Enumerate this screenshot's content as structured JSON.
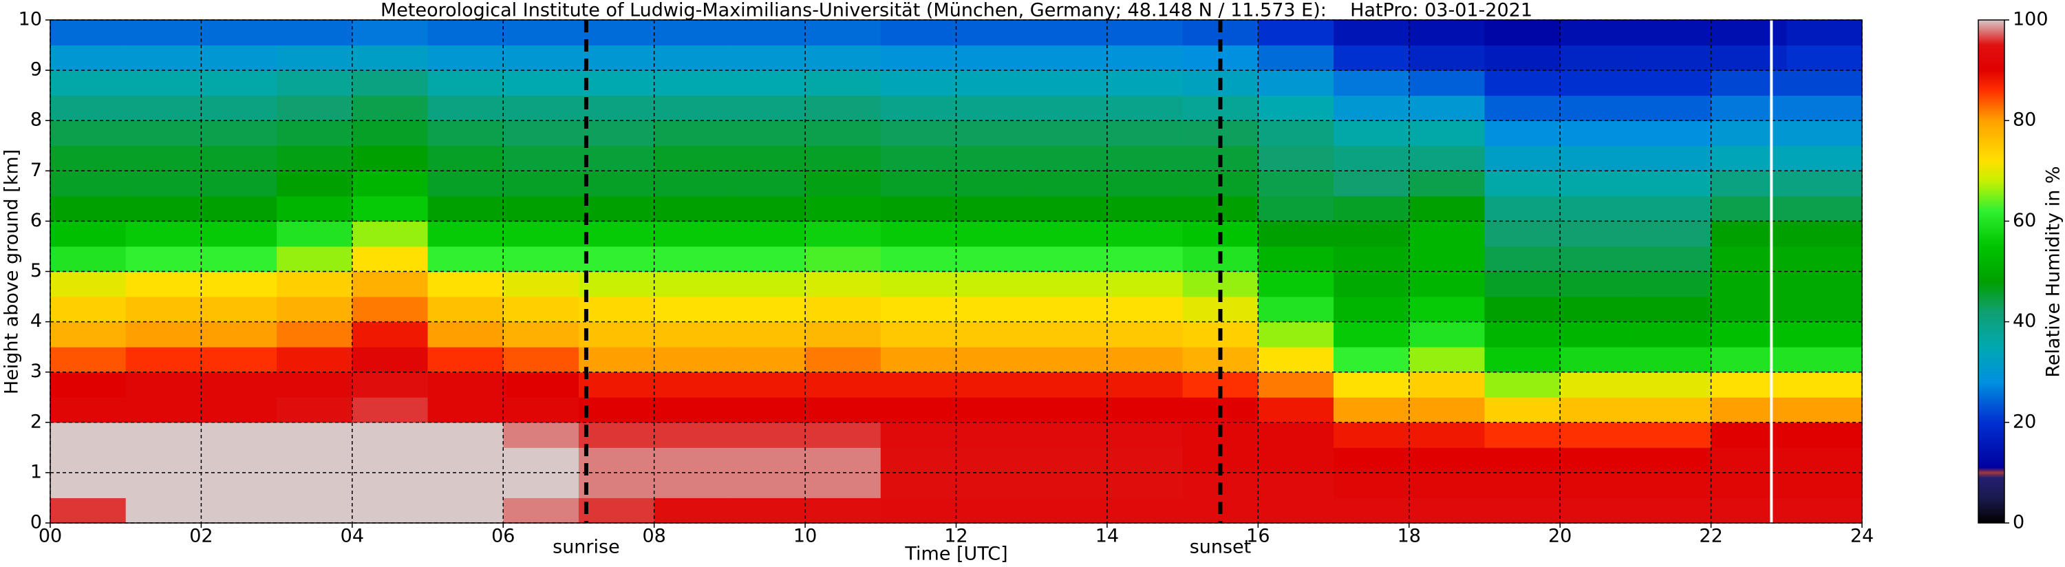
{
  "chart_data": {
    "type": "heatmap",
    "title": "Meteorological Institute of Ludwig-Maximilians-Universität (München, Germany; 48.148 N / 11.573 E):    HatPro: 03-01-2021",
    "xlabel": "Time [UTC]",
    "ylabel": "Height above ground [km]",
    "colorbar_label": "Relative Humidity in %",
    "x": [
      0,
      1,
      2,
      3,
      4,
      5,
      6,
      7,
      8,
      9,
      10,
      11,
      12,
      13,
      14,
      15,
      16,
      17,
      18,
      19,
      20,
      21,
      22,
      23,
      24
    ],
    "y": [
      0,
      0.5,
      1,
      1.5,
      2,
      2.5,
      3,
      3.5,
      4,
      4.5,
      5,
      5.5,
      6,
      6.5,
      7,
      7.5,
      8,
      8.5,
      9,
      9.5,
      10
    ],
    "values": [
      [
        96,
        100,
        100,
        100,
        92,
        90,
        84,
        78,
        74,
        70,
        60,
        54,
        48,
        46,
        46,
        44,
        40,
        36,
        30,
        25
      ],
      [
        100,
        100,
        100,
        100,
        92,
        92,
        86,
        80,
        76,
        72,
        62,
        56,
        48,
        46,
        46,
        44,
        40,
        36,
        30,
        25
      ],
      [
        100,
        100,
        100,
        100,
        92,
        92,
        86,
        80,
        76,
        72,
        62,
        56,
        48,
        46,
        46,
        44,
        40,
        36,
        30,
        25
      ],
      [
        100,
        100,
        100,
        100,
        94,
        92,
        88,
        82,
        78,
        74,
        66,
        60,
        52,
        48,
        47,
        45,
        42,
        38,
        31,
        25
      ],
      [
        100,
        100,
        100,
        100,
        96,
        94,
        92,
        88,
        82,
        78,
        72,
        66,
        56,
        52,
        48,
        46,
        44,
        40,
        32,
        26
      ],
      [
        100,
        100,
        100,
        100,
        92,
        92,
        86,
        80,
        76,
        72,
        62,
        56,
        48,
        46,
        46,
        44,
        40,
        36,
        30,
        25
      ],
      [
        98,
        100,
        100,
        98,
        92,
        90,
        84,
        78,
        74,
        70,
        62,
        56,
        48,
        46,
        45,
        43,
        40,
        35,
        30,
        25
      ],
      [
        96,
        98,
        98,
        96,
        90,
        88,
        80,
        76,
        73,
        68,
        62,
        56,
        48,
        46,
        45,
        43,
        40,
        35,
        30,
        25
      ],
      [
        94,
        98,
        98,
        96,
        90,
        88,
        80,
        76,
        72,
        68,
        62,
        56,
        48,
        46,
        46,
        44,
        40,
        35,
        30,
        25
      ],
      [
        94,
        98,
        98,
        96,
        90,
        88,
        80,
        76,
        72,
        68,
        62,
        56,
        48,
        46,
        46,
        44,
        40,
        35,
        30,
        25
      ],
      [
        94,
        98,
        98,
        96,
        90,
        88,
        82,
        77,
        73,
        69,
        63,
        57,
        49,
        47,
        46,
        44,
        41,
        36,
        30,
        25
      ],
      [
        93,
        94,
        94,
        93,
        90,
        88,
        80,
        75,
        72,
        68,
        62,
        56,
        48,
        46,
        45,
        43,
        39,
        34,
        29,
        24
      ],
      [
        93,
        94,
        94,
        93,
        90,
        88,
        80,
        75,
        72,
        68,
        62,
        56,
        48,
        46,
        45,
        43,
        39,
        34,
        29,
        24
      ],
      [
        93,
        94,
        94,
        93,
        90,
        88,
        80,
        75,
        72,
        68,
        62,
        56,
        48,
        46,
        45,
        43,
        39,
        34,
        29,
        24
      ],
      [
        93,
        94,
        94,
        93,
        90,
        88,
        80,
        75,
        72,
        68,
        62,
        56,
        48,
        46,
        45,
        43,
        39,
        34,
        29,
        24
      ],
      [
        93,
        93,
        92,
        92,
        90,
        86,
        78,
        74,
        70,
        66,
        60,
        55,
        48,
        46,
        45,
        43,
        38,
        33,
        28,
        23
      ],
      [
        93,
        93,
        92,
        92,
        88,
        82,
        72,
        66,
        60,
        56,
        52,
        48,
        45,
        44,
        42,
        40,
        35,
        30,
        25,
        20
      ],
      [
        93,
        92,
        90,
        88,
        80,
        72,
        62,
        56,
        52,
        50,
        50,
        48,
        46,
        42,
        40,
        36,
        30,
        26,
        20,
        15
      ],
      [
        93,
        92,
        90,
        88,
        80,
        74,
        66,
        60,
        56,
        52,
        52,
        52,
        48,
        44,
        40,
        36,
        30,
        24,
        18,
        14
      ],
      [
        93,
        92,
        90,
        86,
        74,
        66,
        56,
        52,
        48,
        46,
        44,
        42,
        40,
        36,
        32,
        28,
        24,
        20,
        16,
        12
      ],
      [
        93,
        92,
        90,
        86,
        76,
        70,
        58,
        52,
        48,
        46,
        44,
        42,
        40,
        36,
        32,
        28,
        24,
        20,
        18,
        14
      ],
      [
        93,
        92,
        90,
        86,
        76,
        70,
        58,
        52,
        48,
        46,
        44,
        42,
        40,
        36,
        32,
        28,
        24,
        20,
        18,
        14
      ],
      [
        93,
        92,
        92,
        90,
        80,
        72,
        60,
        54,
        50,
        50,
        50,
        48,
        44,
        40,
        34,
        30,
        26,
        22,
        18,
        14
      ],
      [
        93,
        92,
        92,
        90,
        80,
        72,
        60,
        54,
        50,
        50,
        50,
        48,
        44,
        40,
        34,
        30,
        26,
        22,
        20,
        16
      ]
    ],
    "xlim": [
      0,
      24
    ],
    "ylim": [
      0,
      10
    ],
    "xticks": [
      {
        "value": 0,
        "label": "00"
      },
      {
        "value": 2,
        "label": "02"
      },
      {
        "value": 4,
        "label": "04"
      },
      {
        "value": 6,
        "label": "06"
      },
      {
        "value": 8,
        "label": "08"
      },
      10,
      12,
      14,
      16,
      18,
      20,
      22,
      24
    ],
    "yticks": [
      0,
      1,
      2,
      3,
      4,
      5,
      6,
      7,
      8,
      9,
      10
    ],
    "clim": [
      0,
      100
    ],
    "cticks": [
      0,
      20,
      40,
      60,
      80,
      100
    ],
    "colormap": [
      [
        0,
        "#000000"
      ],
      [
        5,
        "#1a1a50"
      ],
      [
        9,
        "#231f70"
      ],
      [
        10,
        "#a03a3a"
      ],
      [
        11,
        "#0000a0"
      ],
      [
        20,
        "#0030d0"
      ],
      [
        28,
        "#0090e0"
      ],
      [
        35,
        "#00a8b0"
      ],
      [
        42,
        "#10a070"
      ],
      [
        48,
        "#00a000"
      ],
      [
        55,
        "#00c400"
      ],
      [
        62,
        "#30f030"
      ],
      [
        68,
        "#c8f000"
      ],
      [
        72,
        "#ffe000"
      ],
      [
        80,
        "#ffa000"
      ],
      [
        86,
        "#ff3000"
      ],
      [
        90,
        "#e00000"
      ],
      [
        95,
        "#e01010"
      ],
      [
        100,
        "#d8c8c8"
      ]
    ],
    "grid": true,
    "annotations": [
      {
        "x": 7.1,
        "label": "sunrise",
        "color": "#000000",
        "style": "dashed"
      },
      {
        "x": 15.5,
        "label": "sunset",
        "color": "#000000",
        "style": "dashed"
      },
      {
        "x": 22.8,
        "color": "#ffffff",
        "style": "solid"
      }
    ]
  }
}
